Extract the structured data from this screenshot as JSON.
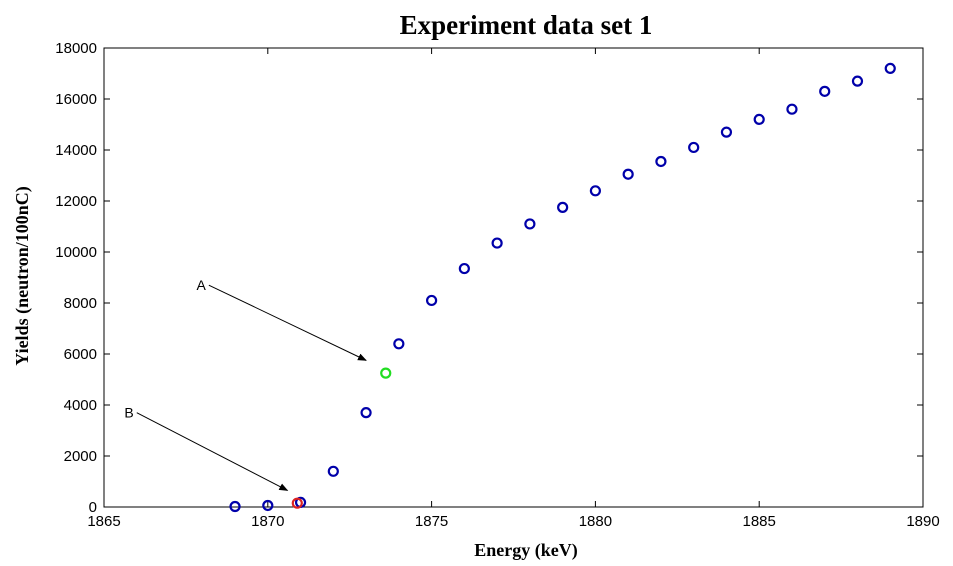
{
  "chart_data": {
    "type": "scatter",
    "title": "Experiment data set 1",
    "xlabel": "Energy (keV)",
    "ylabel": "Yields (neutron/100nC)",
    "xlim": [
      1865,
      1890
    ],
    "ylim": [
      0,
      18000
    ],
    "x_ticks": [
      1865,
      1870,
      1875,
      1880,
      1885,
      1890
    ],
    "y_ticks": [
      0,
      2000,
      4000,
      6000,
      8000,
      10000,
      12000,
      14000,
      16000,
      18000
    ],
    "grid": false,
    "legend": "none",
    "series": [
      {
        "color": "#0000aa",
        "marker": "circle",
        "points": [
          [
            1869,
            20
          ],
          [
            1870,
            60
          ],
          [
            1871,
            180
          ],
          [
            1872,
            1400
          ],
          [
            1873,
            3700
          ],
          [
            1874,
            6400
          ],
          [
            1875,
            8100
          ],
          [
            1876,
            9350
          ],
          [
            1877,
            10350
          ],
          [
            1878,
            11100
          ],
          [
            1879,
            11750
          ],
          [
            1880,
            12400
          ],
          [
            1881,
            13050
          ],
          [
            1882,
            13550
          ],
          [
            1883,
            14100
          ],
          [
            1884,
            14700
          ],
          [
            1885,
            15200
          ],
          [
            1886,
            15600
          ],
          [
            1887,
            16300
          ],
          [
            1888,
            16700
          ],
          [
            1889,
            17200
          ]
        ]
      },
      {
        "color": "#22dd22",
        "marker": "circle",
        "points": [
          [
            1873.6,
            5250
          ]
        ]
      },
      {
        "color": "#dd2222",
        "marker": "circle",
        "points": [
          [
            1870.9,
            150
          ]
        ]
      }
    ],
    "annotations": [
      {
        "text": "A",
        "from": [
          1868.2,
          8700
        ],
        "to": [
          1873.0,
          5750
        ]
      },
      {
        "text": "B",
        "from": [
          1866.0,
          3700
        ],
        "to": [
          1870.6,
          650
        ]
      }
    ]
  }
}
